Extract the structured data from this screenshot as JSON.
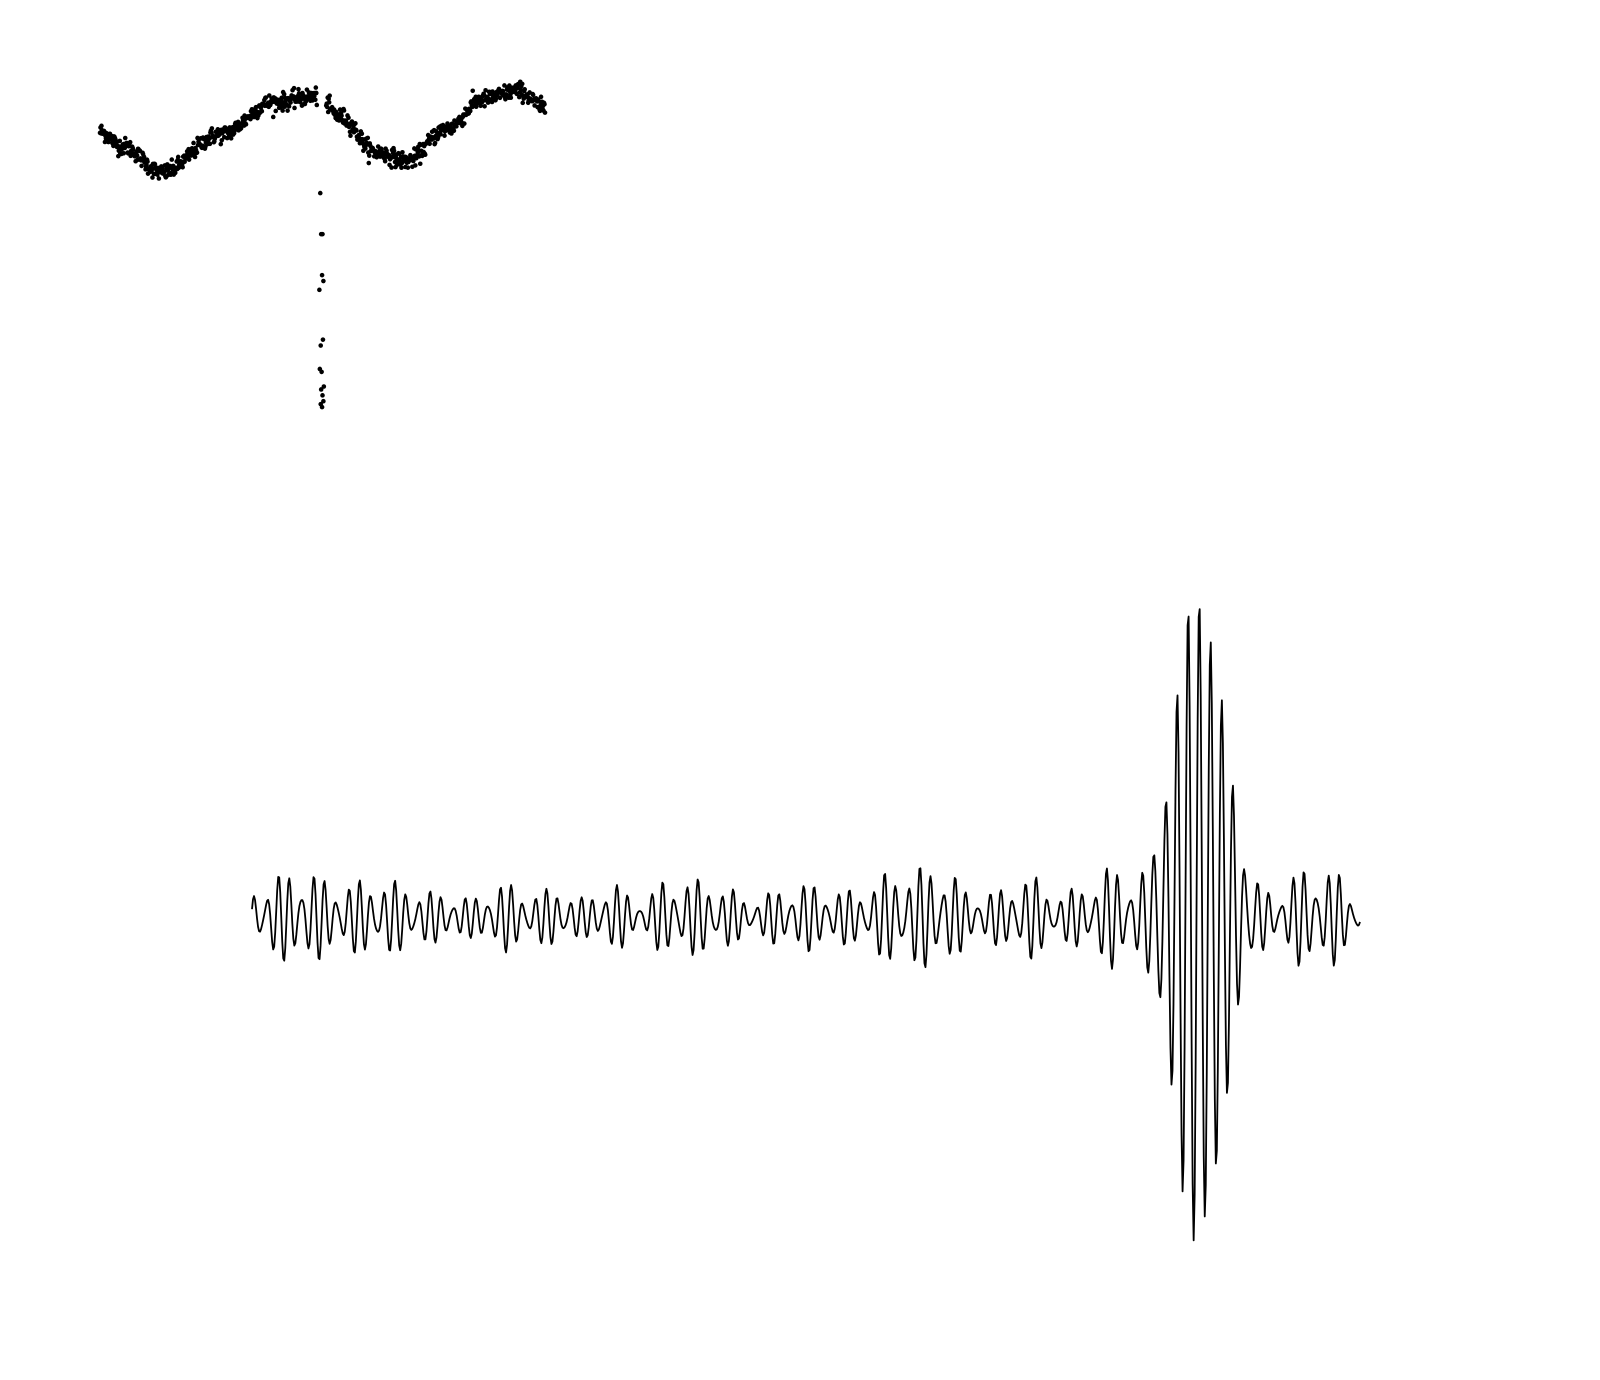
{
  "colors": {
    "background": "#ffffff",
    "ink": "#000000"
  },
  "chart_data": [
    {
      "type": "scatter",
      "title": "",
      "xlabel": "",
      "ylabel": "",
      "axes_visible": false,
      "grid": false,
      "legend": "none",
      "description_of_shape": "two-cycle sinusoid with scatter noise; a vertical streak of outlying points drops below near the middle",
      "xlim": [
        0,
        1
      ],
      "ylim": [
        -4.6,
        1.2
      ],
      "series": [
        {
          "marker": "dot",
          "trend": {
            "x": [
              0.0,
              0.05,
              0.14,
              0.27,
              0.39,
              0.49,
              0.54,
              0.62,
              0.69,
              0.78,
              0.86,
              0.94,
              1.0
            ],
            "y": [
              0.15,
              -0.1,
              -0.55,
              0.1,
              0.65,
              0.75,
              0.4,
              -0.2,
              -0.35,
              0.2,
              0.7,
              0.85,
              0.55
            ]
          },
          "noise": 0.12,
          "outliers": {
            "x": [
              0.495,
              0.497,
              0.5,
              0.502,
              0.493,
              0.499,
              0.496,
              0.501,
              0.498,
              0.494,
              0.503,
              0.497,
              0.5,
              0.502,
              0.499,
              0.496
            ],
            "y": [
              -0.9,
              -1.6,
              -1.6,
              -2.4,
              -2.55,
              -2.3,
              -3.5,
              -3.4,
              -3.95,
              -3.9,
              -4.2,
              -4.25,
              -4.35,
              -4.45,
              -4.55,
              -4.5
            ]
          }
        }
      ]
    },
    {
      "type": "line",
      "title": "",
      "xlabel": "",
      "ylabel": "",
      "axes_visible": false,
      "grid": false,
      "legend": "none",
      "description_of_shape": "oscillating waveform of moderate amplitude with a large burst near 85% of the span",
      "xlim": [
        0,
        1
      ],
      "ylim": [
        -1.2,
        1.2
      ],
      "series": [
        {
          "background_amplitude": 0.17,
          "burst": {
            "center": 0.855,
            "peak_amplitude": 1.1,
            "width": 0.03
          },
          "cycles": 95,
          "samples": 1100
        }
      ]
    }
  ]
}
